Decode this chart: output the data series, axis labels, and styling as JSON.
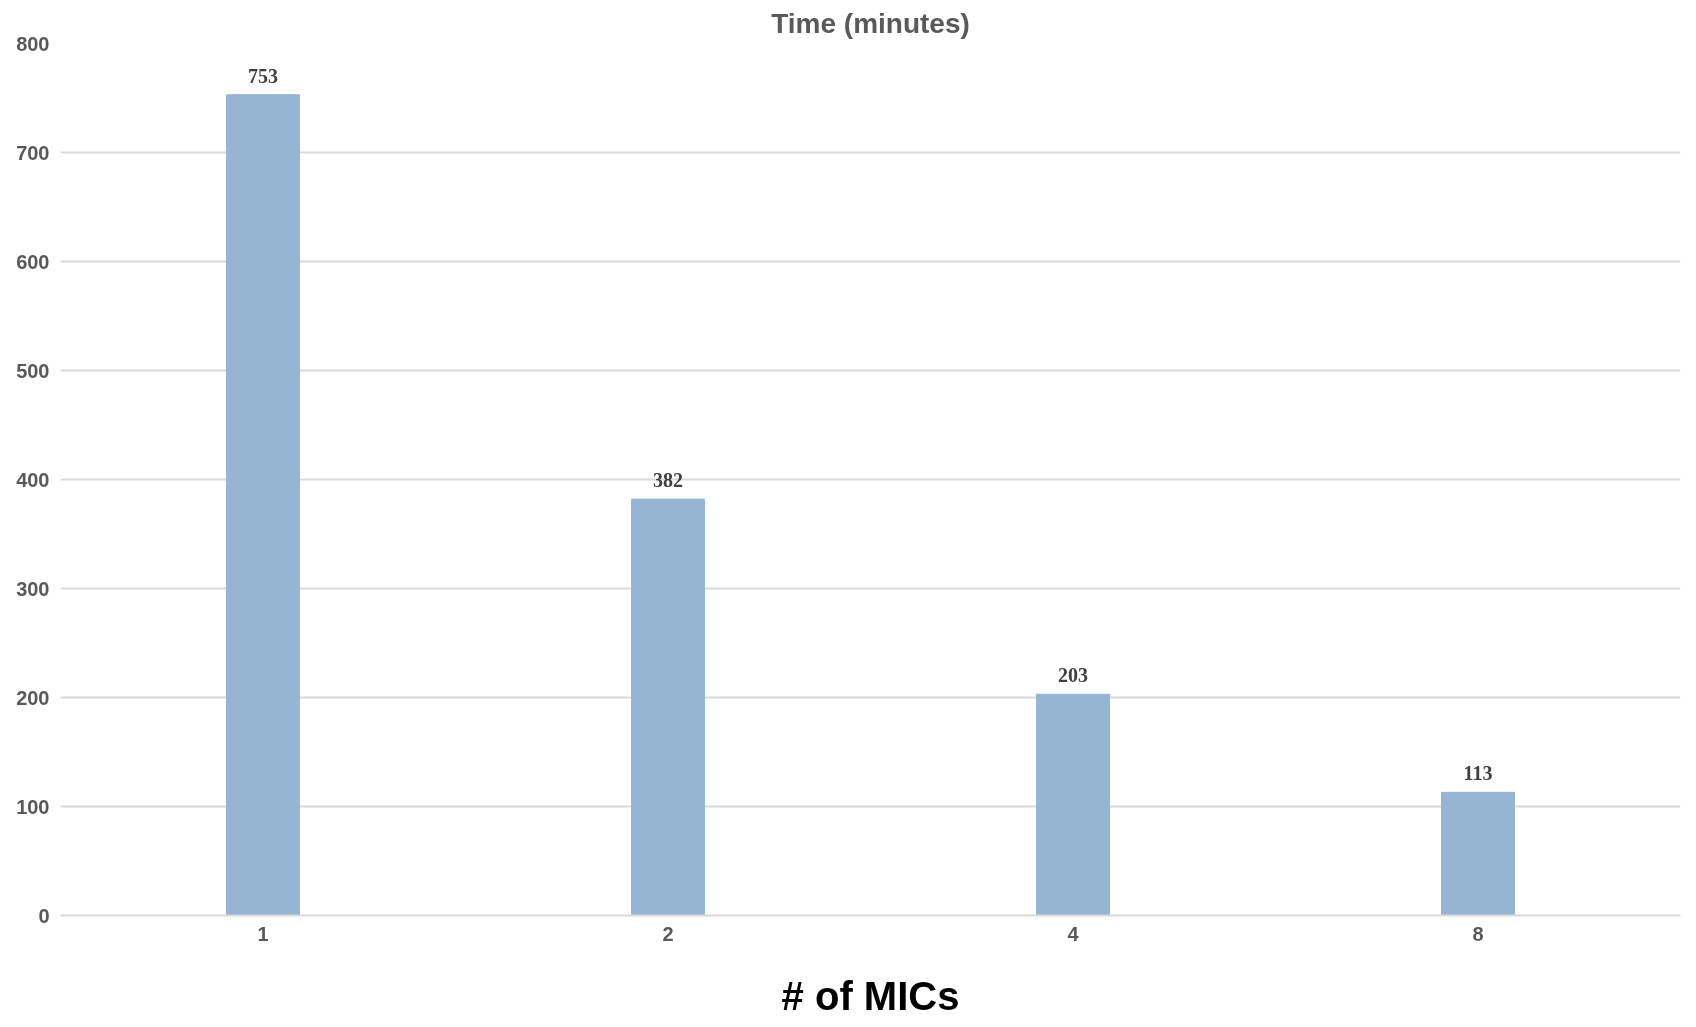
{
  "chart_data": {
    "type": "bar",
    "title": "Time (minutes)",
    "xlabel": "# of MICs",
    "categories": [
      "1",
      "2",
      "4",
      "8"
    ],
    "values": [
      753,
      382,
      203,
      113
    ],
    "color": "#95b5d3",
    "ylim": [
      0,
      800
    ],
    "yticks": [
      0,
      100,
      200,
      300,
      400,
      500,
      600,
      700,
      800
    ],
    "grid": "y",
    "data_labels": true
  }
}
